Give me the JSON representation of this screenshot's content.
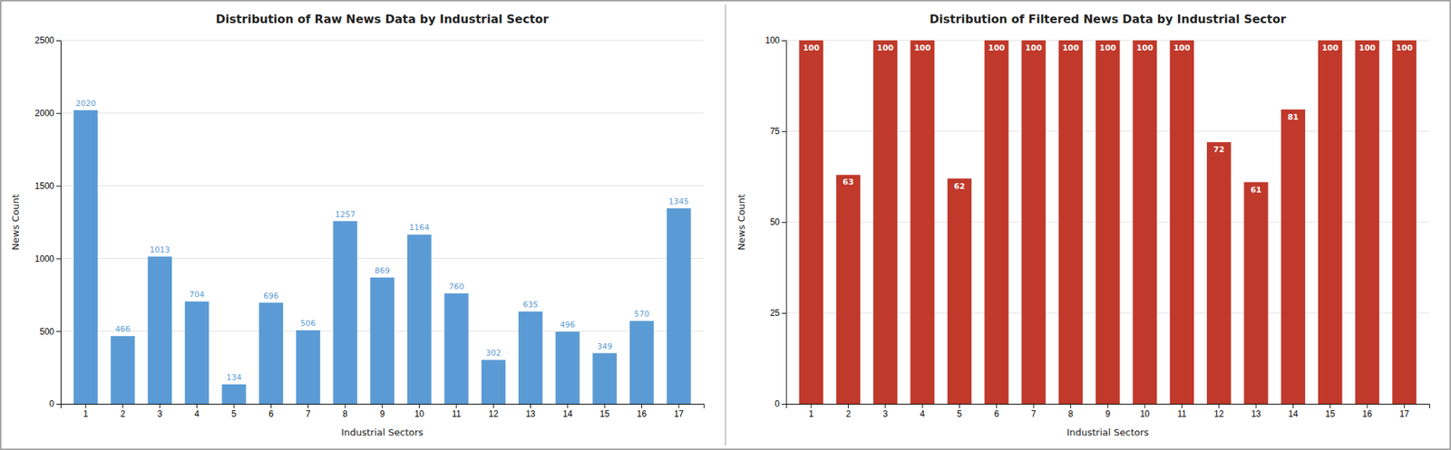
{
  "chart_data": [
    {
      "type": "bar",
      "title": "Distribution of Raw News Data by Industrial Sector",
      "x_label": "Industrial Sectors",
      "y_label": "News Count",
      "categories": [
        "1",
        "2",
        "3",
        "4",
        "5",
        "6",
        "7",
        "8",
        "9",
        "10",
        "11",
        "12",
        "13",
        "14",
        "15",
        "16",
        "17"
      ],
      "values": [
        2020,
        466,
        1013,
        704,
        134,
        696,
        506,
        1257,
        869,
        1164,
        760,
        302,
        635,
        496,
        349,
        570,
        1345
      ],
      "color": "#5b9bd5",
      "ylim": [
        0,
        2500
      ],
      "yticks": [
        0,
        500,
        1000,
        1500,
        2000,
        2500
      ],
      "grid": true,
      "data_labels": true
    },
    {
      "type": "bar",
      "title": "Distribution of Filtered News Data by Industrial Sector",
      "x_label": "Industrial Sectors",
      "y_label": "News Count",
      "categories": [
        "1",
        "2",
        "3",
        "4",
        "5",
        "6",
        "7",
        "8",
        "9",
        "10",
        "11",
        "12",
        "13",
        "14",
        "15",
        "16",
        "17"
      ],
      "values": [
        100,
        63,
        100,
        100,
        62,
        100,
        100,
        100,
        100,
        100,
        100,
        72,
        61,
        81,
        100,
        100,
        100
      ],
      "color": "#c0392b",
      "ylim": [
        0,
        100
      ],
      "yticks": [
        0,
        25,
        50,
        75,
        100
      ],
      "grid": true,
      "data_labels": true
    }
  ]
}
